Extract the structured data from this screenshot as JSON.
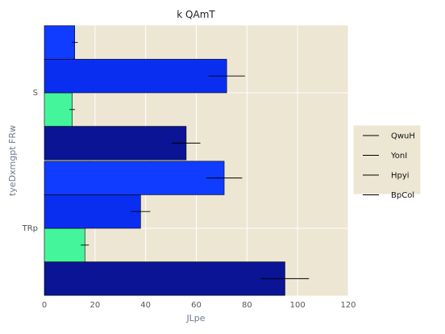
{
  "chart_data": {
    "type": "bar",
    "orientation": "horizontal",
    "title": "k QAmT",
    "xlabel": "JLpe",
    "ylabel": "tyeDxmgpt FRw",
    "xlim": [
      0,
      120
    ],
    "xticks": [
      "0",
      "20",
      "40",
      "60",
      "80",
      "100",
      "120"
    ],
    "categories": [
      "TRp",
      "S"
    ],
    "grid": true,
    "legend_position": "right",
    "background": "#ece6d3",
    "series": [
      {
        "name": "QwuH",
        "color": "#0a1494",
        "values": [
          95,
          56
        ],
        "errors": [
          9.5,
          5.6
        ]
      },
      {
        "name": "YonI",
        "color": "#44f59b",
        "values": [
          16,
          11
        ],
        "errors": [
          1.6,
          1.1
        ]
      },
      {
        "name": "Hpyi",
        "color": "#0a2ef0",
        "values": [
          38,
          72
        ],
        "errors": [
          3.8,
          7.2
        ]
      },
      {
        "name": "BpCol",
        "color": "#0f3cff",
        "values": [
          71,
          12
        ],
        "errors": [
          7.1,
          1.2
        ]
      }
    ]
  }
}
